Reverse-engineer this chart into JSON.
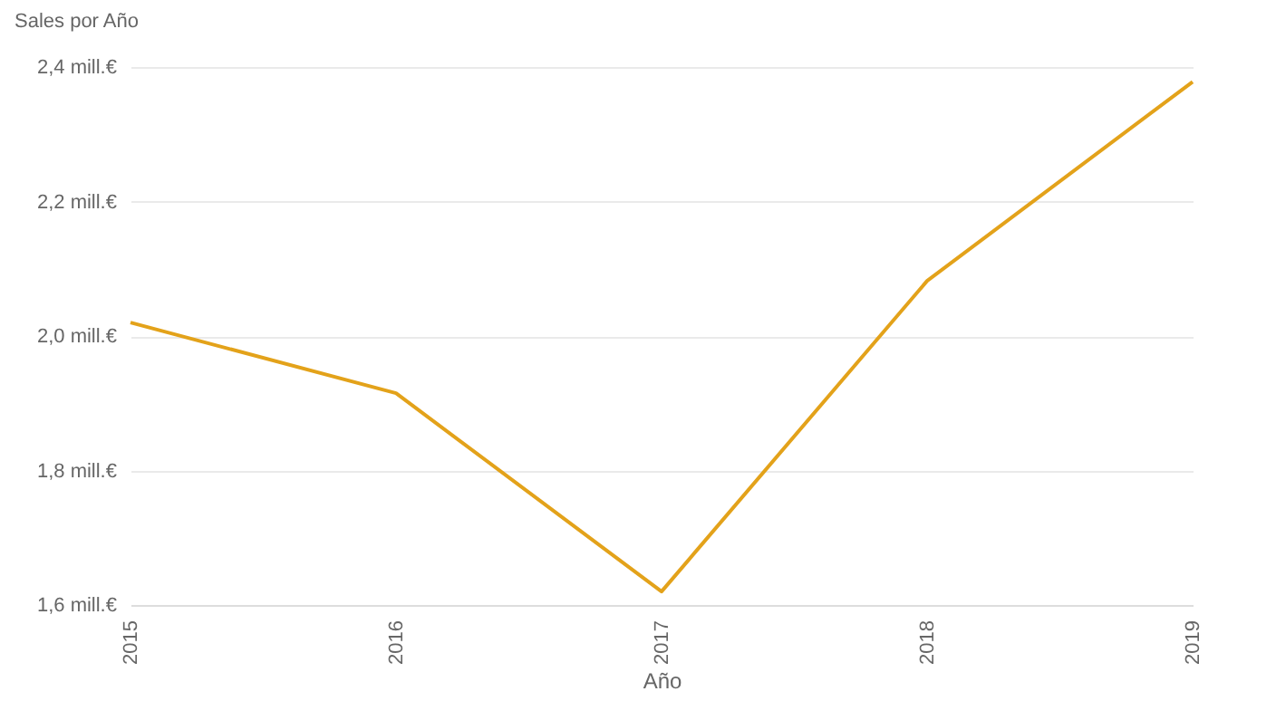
{
  "chart_data": {
    "type": "line",
    "title": "Sales por Año",
    "xlabel": "Año",
    "categories": [
      "2015",
      "2016",
      "2017",
      "2018",
      "2019"
    ],
    "series": [
      {
        "color": "#e3a21a",
        "values": [
          2.02,
          1.915,
          1.62,
          2.082,
          2.378
        ]
      }
    ],
    "ylim": [
      1.6,
      2.4
    ],
    "yticks": [
      {
        "value": 1.6,
        "label": "1,6 mill.€"
      },
      {
        "value": 1.8,
        "label": "1,8 mill.€"
      },
      {
        "value": 2.0,
        "label": "2,0 mill.€"
      },
      {
        "value": 2.2,
        "label": "2,2 mill.€"
      },
      {
        "value": 2.4,
        "label": "2,4 mill.€"
      }
    ],
    "grid": "y",
    "marker": "none",
    "line_style": "solid"
  }
}
